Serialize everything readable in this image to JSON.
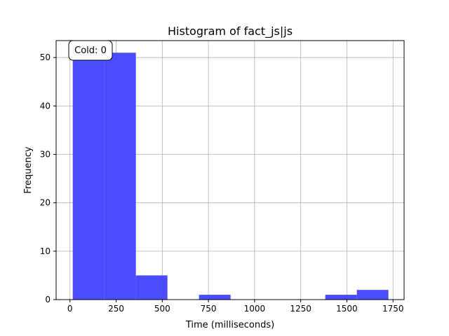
{
  "chart_data": {
    "type": "bar",
    "title": "Histogram of fact_js|js",
    "xlabel": "Time (milliseconds)",
    "ylabel": "Frequency",
    "xlim": [
      -75,
      1810
    ],
    "ylim": [
      0,
      53.5
    ],
    "xticks": [
      0,
      250,
      500,
      750,
      1000,
      1250,
      1500,
      1750
    ],
    "yticks": [
      0,
      10,
      20,
      30,
      40,
      50
    ],
    "grid": true,
    "bins": [
      {
        "x0": 15,
        "x1": 186,
        "value": 51
      },
      {
        "x0": 186,
        "x1": 357,
        "value": 51
      },
      {
        "x0": 357,
        "x1": 528,
        "value": 5
      },
      {
        "x0": 528,
        "x1": 699,
        "value": 0
      },
      {
        "x0": 699,
        "x1": 870,
        "value": 1
      },
      {
        "x0": 870,
        "x1": 1041,
        "value": 0
      },
      {
        "x0": 1041,
        "x1": 1212,
        "value": 0
      },
      {
        "x0": 1212,
        "x1": 1383,
        "value": 0
      },
      {
        "x0": 1383,
        "x1": 1554,
        "value": 1
      },
      {
        "x0": 1554,
        "x1": 1725,
        "value": 2
      }
    ],
    "bar_color": "#4b4bff",
    "annotation": "Cold: 0"
  }
}
